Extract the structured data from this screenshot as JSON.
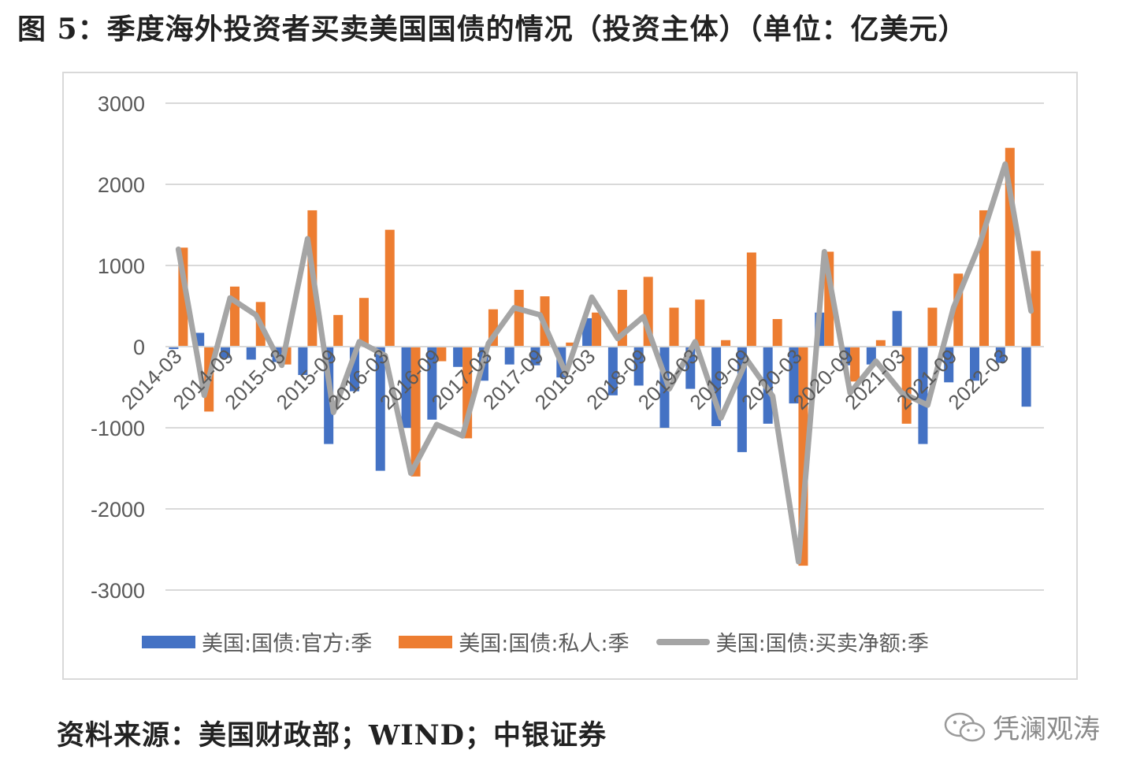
{
  "page": {
    "title": "图 5：季度海外投资者买卖美国国债的情况（投资主体）（单位：亿美元）",
    "source": "资料来源：美国财政部；WIND；中银证券",
    "watermark": "凭澜观涛"
  },
  "chart_data": {
    "type": "bar",
    "ylim": [
      -3000,
      3000
    ],
    "yticks": [
      "3000",
      "2000",
      "1000",
      "0",
      "-1000",
      "-2000",
      "-3000"
    ],
    "grid": true,
    "legend_position": "bottom",
    "categories": [
      "2014-03",
      "2014-06",
      "2014-09",
      "2014-12",
      "2015-03",
      "2015-06",
      "2015-09",
      "2015-12",
      "2016-03",
      "2016-06",
      "2016-09",
      "2016-12",
      "2017-03",
      "2017-06",
      "2017-09",
      "2017-12",
      "2018-03",
      "2018-06",
      "2018-09",
      "2018-12",
      "2019-03",
      "2019-06",
      "2019-09",
      "2019-12",
      "2020-03",
      "2020-06",
      "2020-09",
      "2020-12",
      "2021-03",
      "2021-06",
      "2021-09",
      "2021-12",
      "2022-03",
      "2022-06"
    ],
    "xticklabels": [
      "2014-03",
      "2014-09",
      "2015-03",
      "2015-09",
      "2016-03",
      "2016-09",
      "2017-03",
      "2017-09",
      "2018-03",
      "2018-09",
      "2019-03",
      "2019-09",
      "2020-03",
      "2020-09",
      "2021-03",
      "2021-09",
      "2022-03"
    ],
    "series": [
      {
        "name": "美国:国债:官方:季",
        "type": "bar",
        "color": "#4472c4",
        "values": [
          -30,
          170,
          -140,
          -160,
          -190,
          -350,
          -1200,
          -550,
          -1530,
          -1000,
          -900,
          -250,
          -420,
          -220,
          -230,
          -380,
          350,
          -600,
          -480,
          -1000,
          -520,
          -980,
          -1300,
          -950,
          -700,
          420,
          -230,
          -220,
          440,
          -1200,
          -440,
          -420,
          -200,
          -740
        ]
      },
      {
        "name": "美国:国债:私人:季",
        "type": "bar",
        "color": "#ed7d31",
        "values": [
          1220,
          -800,
          740,
          550,
          -220,
          1680,
          390,
          600,
          1440,
          -1600,
          -180,
          -1130,
          460,
          700,
          620,
          50,
          420,
          700,
          860,
          480,
          580,
          80,
          1160,
          340,
          -2700,
          1170,
          -430,
          80,
          -950,
          480,
          900,
          1680,
          2450,
          1180
        ]
      },
      {
        "name": "美国:国债:买卖净额:季",
        "type": "line",
        "color": "#a5a5a5",
        "values": [
          1200,
          -600,
          600,
          390,
          -230,
          1330,
          -810,
          60,
          -110,
          -1560,
          -960,
          -1100,
          40,
          480,
          390,
          -330,
          610,
          100,
          370,
          -520,
          60,
          -880,
          -160,
          -610,
          -2650,
          1170,
          -570,
          -180,
          -570,
          -720,
          480,
          1250,
          2250,
          440
        ]
      }
    ]
  }
}
